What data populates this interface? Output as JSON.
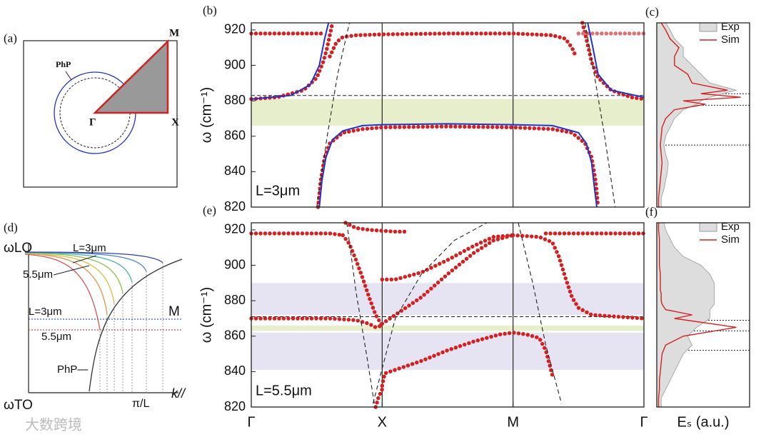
{
  "chart_data": [
    {
      "type": "line",
      "label": "(b)",
      "y_label": "ω (cm⁻¹)",
      "annotation": "L=3μm",
      "xlim": [
        0,
        3
      ],
      "ylim": [
        820,
        924
      ],
      "yticks": [
        820,
        840,
        860,
        880,
        900,
        920
      ],
      "vlines": [
        1,
        2
      ],
      "reference_lines": [
        883
      ],
      "bands": [
        {
          "range": [
            866,
            881
          ],
          "color": "#e6eecc"
        }
      ],
      "series": [
        {
          "style": "dots",
          "color": "#d42020",
          "x": [
            0,
            0.2,
            0.4,
            0.55
          ],
          "values": [
            918,
            918,
            918,
            918
          ]
        },
        {
          "style": "dots",
          "color": "#d42020",
          "x": [
            0,
            0.2,
            0.4,
            0.5,
            0.55,
            0.58,
            0.6,
            0.62
          ],
          "values": [
            881,
            882,
            886,
            893,
            902,
            910,
            917,
            924
          ]
        },
        {
          "style": "dots",
          "color": "#d42020",
          "x": [
            0.6,
            0.65,
            0.7,
            0.8,
            1,
            1.5,
            2,
            2.3,
            2.4,
            2.45,
            2.48
          ],
          "values": [
            905,
            913,
            916,
            917,
            917.5,
            918,
            918,
            917,
            915,
            910,
            905
          ]
        },
        {
          "style": "dots",
          "color": "#d42020",
          "x": [
            2.53,
            2.56,
            2.6,
            2.65,
            2.75,
            2.9,
            3
          ],
          "values": [
            924,
            915,
            902,
            893,
            886,
            882,
            881
          ]
        },
        {
          "style": "dots",
          "color": "#e07070",
          "x": [
            2.5,
            2.7,
            2.9,
            3
          ],
          "values": [
            918,
            918,
            918,
            918
          ]
        },
        {
          "style": "dots",
          "color": "#d42020",
          "x": [
            0.51,
            0.53,
            0.56,
            0.6,
            0.7,
            0.85,
            1,
            1.5,
            2,
            2.3,
            2.45,
            2.55,
            2.6,
            2.63,
            2.65
          ],
          "values": [
            820,
            835,
            848,
            856,
            862,
            864,
            865,
            865.5,
            865,
            864,
            862,
            856,
            848,
            835,
            820
          ]
        },
        {
          "style": "solid",
          "color": "#2233cc",
          "x": [
            0.52,
            0.54,
            0.57,
            0.62,
            0.7,
            0.85,
            1,
            1.5,
            2,
            2.3,
            2.5,
            2.56,
            2.6,
            2.62,
            2.64
          ],
          "values": [
            820,
            835,
            848,
            858,
            863,
            866,
            866.5,
            867,
            866.5,
            866,
            862,
            856,
            845,
            832,
            820
          ]
        },
        {
          "style": "solid",
          "color": "#2233cc",
          "x": [
            0,
            0.3,
            0.45,
            0.52,
            0.56,
            0.59
          ],
          "values": [
            881,
            883,
            889,
            900,
            915,
            924
          ]
        },
        {
          "style": "solid",
          "color": "#2233cc",
          "x": [
            2.57,
            2.61,
            2.65,
            2.75,
            3
          ],
          "values": [
            924,
            910,
            895,
            886,
            882
          ]
        },
        {
          "style": "dashed",
          "color": "#222222",
          "x": [
            0.5,
            0.58,
            0.66,
            0.75
          ],
          "values": [
            820,
            860,
            895,
            924
          ]
        },
        {
          "style": "dashed",
          "color": "#222222",
          "x": [
            2.55,
            2.62,
            2.7,
            2.78
          ],
          "values": [
            924,
            895,
            860,
            820
          ]
        }
      ]
    },
    {
      "type": "area",
      "label": "(c)",
      "legend": "upper right",
      "ylim": [
        820,
        924
      ],
      "xlim": [
        0,
        1.05
      ],
      "yticks": [
        820,
        840,
        860,
        880,
        900,
        920
      ],
      "reference_lines": [
        884,
        877.5,
        855
      ],
      "omega": [
        820,
        825,
        830,
        835,
        840,
        845,
        850,
        855,
        860,
        865,
        870,
        875,
        878,
        880,
        882,
        884,
        886,
        890,
        895,
        900,
        905,
        910,
        915,
        920,
        924
      ],
      "series": [
        {
          "name": "Exp",
          "color": "#999999",
          "fill": "#dddddd",
          "values": [
            0.05,
            0.05,
            0.08,
            0.1,
            0.12,
            0.13,
            0.1,
            0.08,
            0.1,
            0.15,
            0.2,
            0.3,
            0.45,
            0.5,
            0.6,
            0.75,
            0.9,
            0.6,
            0.5,
            0.4,
            0.3,
            0.3,
            0.2,
            0.15,
            0.1
          ]
        },
        {
          "name": "Sim",
          "color": "#d42020",
          "values": [
            0.02,
            0.02,
            0.03,
            0.04,
            0.05,
            0.06,
            0.05,
            0.04,
            0.05,
            0.06,
            0.1,
            0.2,
            0.55,
            0.3,
            0.95,
            0.5,
            0.8,
            0.4,
            0.35,
            0.2,
            0.2,
            0.25,
            0.15,
            0.1,
            0.05
          ]
        }
      ]
    },
    {
      "type": "line",
      "label": "(e)",
      "y_label": "ω (cm⁻¹)",
      "annotation": "L=5.5μm",
      "xlim": [
        0,
        3
      ],
      "ylim": [
        820,
        924
      ],
      "yticks": [
        820,
        840,
        860,
        880,
        900,
        920
      ],
      "vlines": [
        1,
        2
      ],
      "xticks": [
        {
          "value": 0,
          "label": "Γ"
        },
        {
          "value": 1,
          "label": "X"
        },
        {
          "value": 2,
          "label": "M"
        },
        {
          "value": 3,
          "label": "Γ"
        }
      ],
      "reference_lines": [
        871
      ],
      "bands": [
        {
          "range": [
            841,
            862
          ],
          "color": "#e6e4f2"
        },
        {
          "range": [
            872,
            890
          ],
          "color": "#e6e4f2"
        },
        {
          "range": [
            863,
            866
          ],
          "color": "#e6eecc"
        }
      ],
      "series": [
        {
          "style": "dots",
          "color": "#d42020",
          "x": [
            0,
            0.2,
            0.4,
            0.6,
            0.7
          ],
          "values": [
            918,
            918,
            918,
            918,
            917
          ]
        },
        {
          "style": "dots",
          "color": "#d42020",
          "x": [
            0.7,
            0.75,
            0.8,
            0.85,
            0.9,
            0.95,
            1
          ],
          "values": [
            917,
            912,
            903,
            893,
            882,
            872,
            866
          ]
        },
        {
          "style": "dots",
          "color": "#d42020",
          "x": [
            0.72,
            0.8,
            0.9,
            1,
            1.1,
            1.2
          ],
          "values": [
            924,
            921,
            920,
            919.5,
            919,
            919
          ]
        },
        {
          "style": "dots",
          "color": "#d42020",
          "x": [
            1,
            1.1,
            1.3,
            1.5,
            1.7,
            1.85,
            2
          ],
          "values": [
            892,
            892,
            896,
            903,
            911,
            916,
            917
          ]
        },
        {
          "style": "dots",
          "color": "#d42020",
          "x": [
            1,
            1.1,
            1.3,
            1.5,
            1.7,
            1.85,
            2
          ],
          "values": [
            867,
            872,
            882,
            895,
            907,
            914,
            917
          ]
        },
        {
          "style": "dots",
          "color": "#d42020",
          "x": [
            0,
            0.3,
            0.6,
            0.8,
            0.9,
            0.95,
            1
          ],
          "values": [
            870,
            870,
            870,
            869,
            867,
            865,
            866
          ]
        },
        {
          "style": "dots",
          "color": "#d42020",
          "x": [
            1,
            1.02,
            1.1,
            1.3,
            1.5,
            1.7,
            1.9,
            2,
            2.1,
            2.2,
            2.25,
            2.3
          ],
          "values": [
            832,
            839,
            841,
            846,
            852,
            857,
            861,
            862,
            861,
            859,
            852,
            838
          ]
        },
        {
          "style": "dots",
          "color": "#d42020",
          "x": [
            0.95,
            0.97,
            1
          ],
          "values": [
            820,
            825,
            830
          ]
        },
        {
          "style": "dots",
          "color": "#d42020",
          "x": [
            2,
            2.2,
            2.3,
            2.35,
            2.4,
            2.45,
            2.5,
            2.6,
            2.8,
            3
          ],
          "values": [
            917,
            916,
            913,
            905,
            893,
            882,
            876,
            872,
            871,
            870
          ]
        },
        {
          "style": "dots",
          "color": "#d42020",
          "x": [
            2.25,
            2.4,
            2.6,
            2.8,
            3
          ],
          "values": [
            918,
            918,
            918,
            918,
            918
          ]
        },
        {
          "style": "dashed",
          "color": "#222222",
          "x": [
            0.73,
            0.8,
            0.88,
            0.94
          ],
          "values": [
            924,
            885,
            850,
            822
          ]
        },
        {
          "style": "dashed",
          "color": "#222222",
          "x": [
            0.93,
            1.1,
            1.3,
            1.55,
            1.8
          ],
          "values": [
            822,
            870,
            895,
            914,
            924
          ]
        },
        {
          "style": "dashed",
          "color": "#222222",
          "x": [
            2.04,
            2.15,
            2.25,
            2.37
          ],
          "values": [
            924,
            890,
            855,
            822
          ]
        }
      ]
    },
    {
      "type": "area",
      "label": "(f)",
      "legend": "upper right",
      "x_label": "Eₛ (a.u.)",
      "ylim": [
        820,
        924
      ],
      "xlim": [
        0,
        1.05
      ],
      "yticks": [
        820,
        840,
        860,
        880,
        900,
        920
      ],
      "reference_lines": [
        869,
        863,
        852
      ],
      "omega": [
        820,
        825,
        830,
        835,
        840,
        845,
        850,
        855,
        860,
        865,
        870,
        872,
        875,
        878,
        880,
        884,
        886,
        890,
        895,
        900,
        905,
        910,
        915,
        920,
        924
      ],
      "series": [
        {
          "name": "Exp",
          "color": "#999999",
          "fill": "#dddddd",
          "values": [
            0.05,
            0.05,
            0.1,
            0.15,
            0.2,
            0.25,
            0.3,
            0.4,
            0.35,
            0.45,
            0.6,
            0.6,
            0.6,
            0.65,
            0.65,
            0.65,
            0.65,
            0.65,
            0.6,
            0.5,
            0.3,
            0.2,
            0.15,
            0.1,
            0.08
          ]
        },
        {
          "name": "Sim",
          "color": "#d42020",
          "values": [
            0.02,
            0.02,
            0.03,
            0.03,
            0.04,
            0.05,
            0.06,
            0.1,
            0.3,
            0.9,
            0.2,
            0.4,
            0.1,
            0.06,
            0.05,
            0.05,
            0.04,
            0.04,
            0.04,
            0.03,
            0.03,
            0.03,
            0.03,
            0.02,
            0.02
          ]
        }
      ]
    }
  ],
  "diagram_a": {
    "label": "(a)",
    "corner_m": "M",
    "corner_x": "X",
    "center": "Γ",
    "circle": "PhP"
  },
  "diagram_d": {
    "label": "(d)",
    "top": "ωLO",
    "bottom": "ωTO",
    "axis": "k//",
    "tick": "π/L",
    "curve_top": "L=3μm",
    "curve_low": "5.5μm",
    "line_top": "L=3μm",
    "line_low": "5.5μm",
    "point": "M",
    "branch": "PhP—"
  },
  "watermark": "大数跨境"
}
